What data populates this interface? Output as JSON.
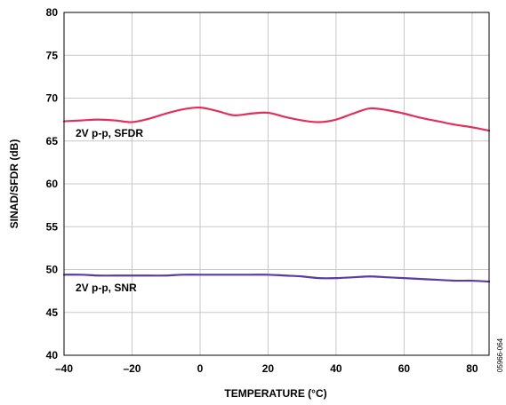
{
  "chart_data": {
    "type": "line",
    "xlabel": "TEMPERATURE (°C)",
    "ylabel": "SINAD/SFDR (dB)",
    "xlim": [
      -40,
      85
    ],
    "ylim": [
      40,
      80
    ],
    "x_ticks": [
      -40,
      -20,
      0,
      20,
      40,
      60,
      80
    ],
    "x_tick_labels": [
      "–40",
      "–20",
      "0",
      "20",
      "40",
      "60",
      "80"
    ],
    "y_ticks": [
      40,
      45,
      50,
      55,
      60,
      65,
      70,
      75,
      80
    ],
    "y_tick_labels": [
      "40",
      "45",
      "50",
      "55",
      "60",
      "65",
      "70",
      "75",
      "80"
    ],
    "grid": true,
    "series": [
      {
        "name": "2V p-p, SFDR",
        "color": "#e0305e",
        "x": [
          -40,
          -35,
          -30,
          -25,
          -20,
          -15,
          -10,
          -5,
          0,
          5,
          10,
          15,
          20,
          25,
          30,
          35,
          40,
          45,
          50,
          55,
          60,
          65,
          70,
          75,
          80,
          85
        ],
        "y": [
          67.3,
          67.4,
          67.5,
          67.4,
          67.2,
          67.6,
          68.2,
          68.7,
          68.9,
          68.5,
          68.0,
          68.2,
          68.3,
          67.8,
          67.4,
          67.2,
          67.5,
          68.2,
          68.8,
          68.6,
          68.2,
          67.7,
          67.3,
          66.9,
          66.6,
          66.2
        ]
      },
      {
        "name": "2V p-p, SNR",
        "color": "#5a3ca0",
        "x": [
          -40,
          -35,
          -30,
          -25,
          -20,
          -15,
          -10,
          -5,
          0,
          5,
          10,
          15,
          20,
          25,
          30,
          35,
          40,
          45,
          50,
          55,
          60,
          65,
          70,
          75,
          80,
          85
        ],
        "y": [
          49.4,
          49.4,
          49.3,
          49.3,
          49.3,
          49.3,
          49.3,
          49.4,
          49.4,
          49.4,
          49.4,
          49.4,
          49.4,
          49.3,
          49.2,
          49.0,
          49.0,
          49.1,
          49.2,
          49.1,
          49.0,
          48.9,
          48.8,
          48.7,
          48.7,
          48.6
        ]
      }
    ]
  },
  "figure_id": "05966-064"
}
